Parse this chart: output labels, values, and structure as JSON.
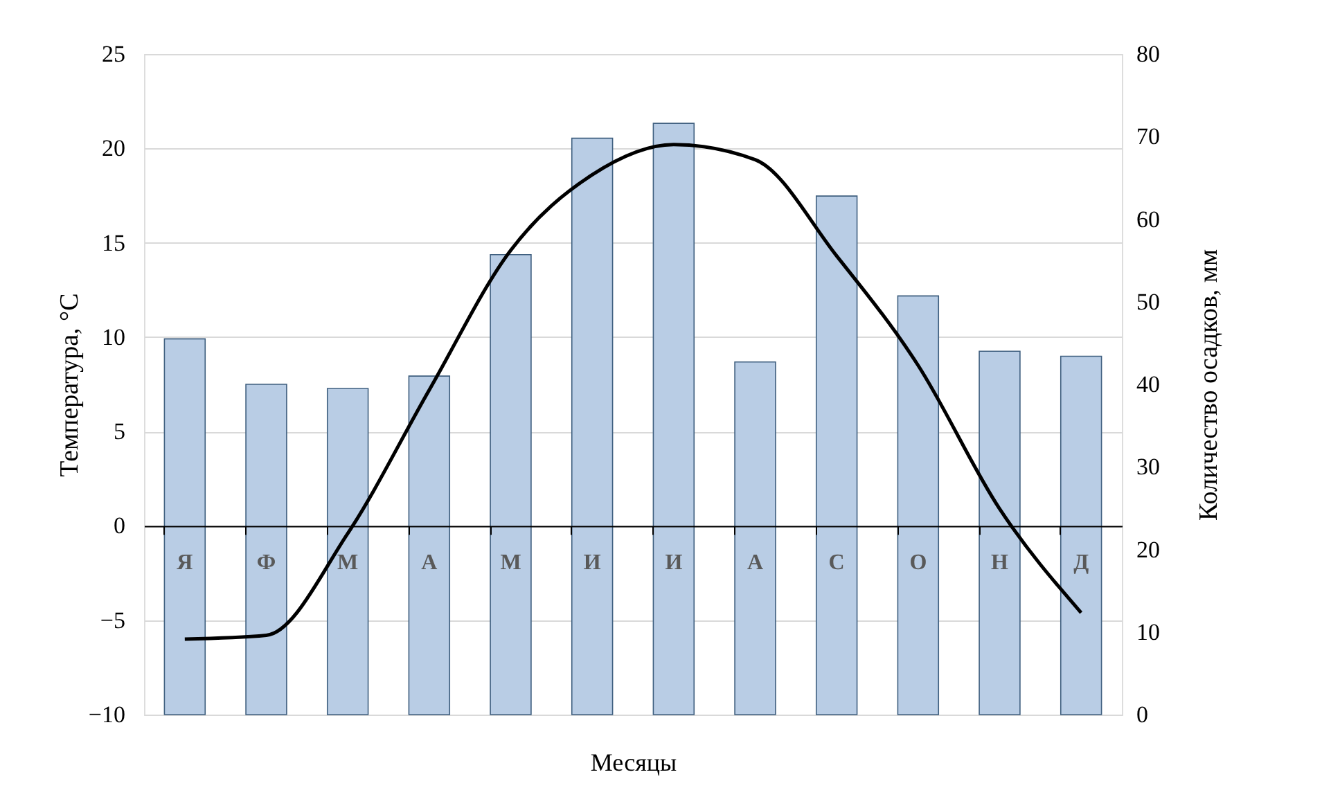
{
  "chart_data": {
    "type": "bar",
    "xlabel": "Месяцы",
    "ylabel": "Температура, °C",
    "y2label": "Количество осадков, мм",
    "categories": [
      "Я",
      "Ф",
      "М",
      "А",
      "М",
      "И",
      "И",
      "А",
      "С",
      "О",
      "Н",
      "Д"
    ],
    "series": [
      {
        "axis": "y2",
        "color": "#b9cde5",
        "values": [
          45.5,
          40.0,
          39.5,
          41.0,
          55.7,
          69.8,
          71.6,
          42.7,
          62.8,
          50.7,
          44.0,
          43.4
        ]
      },
      {
        "type": "line",
        "axis": "y",
        "color": "#000000",
        "values": [
          -6.0,
          -5.8,
          -0.4,
          7.2,
          14.6,
          18.6,
          20.2,
          19.4,
          14.3,
          8.5,
          0.9,
          -4.6
        ]
      }
    ],
    "ylim": [
      -10,
      25
    ],
    "yticks": [
      -10,
      -5,
      0,
      5,
      10,
      15,
      20,
      25
    ],
    "y2lim": [
      0,
      80
    ],
    "y2ticks": [
      0,
      10,
      20,
      30,
      40,
      50,
      60,
      70,
      80
    ],
    "grid": "y"
  }
}
